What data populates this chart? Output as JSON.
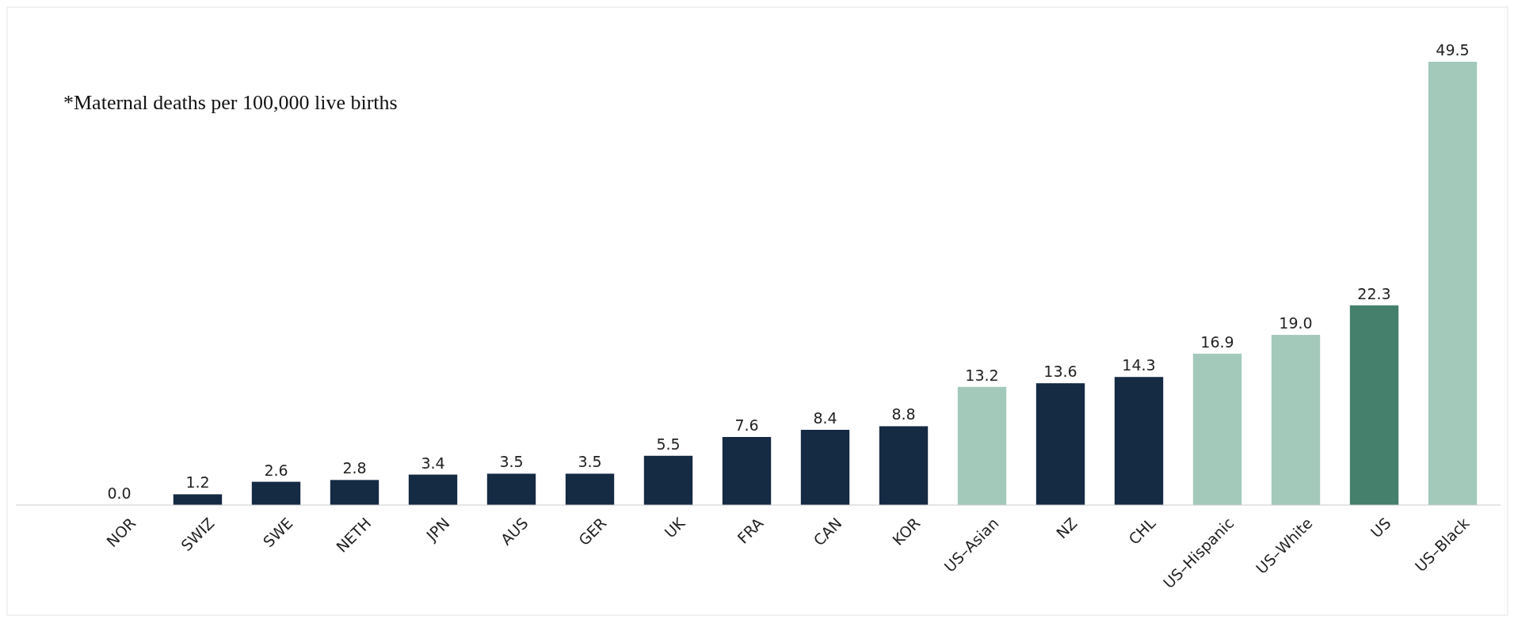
{
  "chart_data": {
    "type": "bar",
    "categories": [
      "NOR",
      "SWIZ",
      "SWE",
      "NETH",
      "JPN",
      "AUS",
      "GER",
      "UK",
      "FRA",
      "CAN",
      "KOR",
      "US–Asian",
      "NZ",
      "CHL",
      "US–Hispanic",
      "US–White",
      "US",
      "US–Black"
    ],
    "values": [
      0.0,
      1.2,
      2.6,
      2.8,
      3.4,
      3.5,
      3.5,
      5.5,
      7.6,
      8.4,
      8.8,
      13.2,
      13.6,
      14.3,
      16.9,
      19.0,
      22.3,
      49.5
    ],
    "colors": [
      "#152a43",
      "#152a43",
      "#152a43",
      "#152a43",
      "#152a43",
      "#152a43",
      "#152a43",
      "#152a43",
      "#152a43",
      "#152a43",
      "#152a43",
      "#a3c9bb",
      "#152a43",
      "#152a43",
      "#a3c9bb",
      "#a3c9bb",
      "#44806c",
      "#a3c9bb"
    ],
    "value_labels": [
      "0.0",
      "1.2",
      "2.6",
      "2.8",
      "3.4",
      "3.5",
      "3.5",
      "5.5",
      "7.6",
      "8.4",
      "8.8",
      "13.2",
      "13.6",
      "14.3",
      "16.9",
      "19.0",
      "22.3",
      "49.5"
    ],
    "annotations": [
      "*Maternal deaths per 100,000 live births"
    ]
  }
}
